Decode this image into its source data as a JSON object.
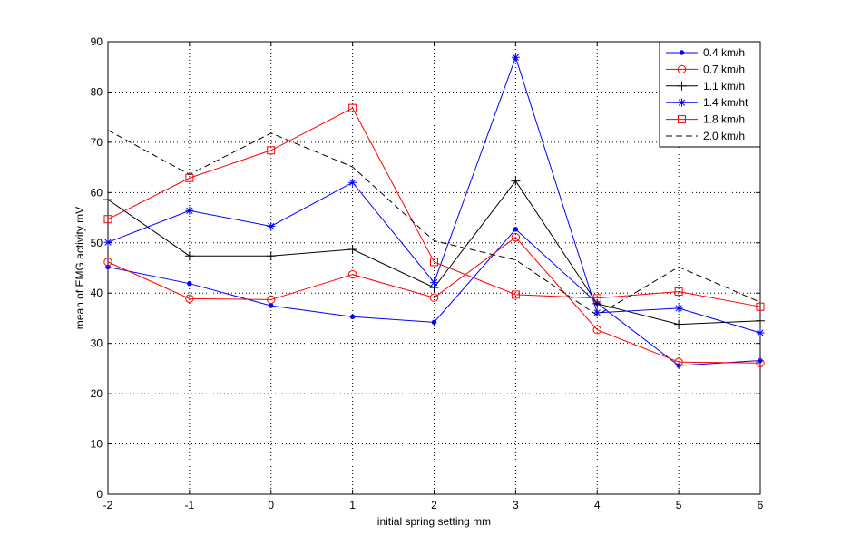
{
  "chart_data": {
    "type": "line",
    "title": "",
    "xlabel": "initial spring setting mm",
    "ylabel": "mean of EMG activity mV",
    "xlim": [
      -2,
      6
    ],
    "ylim": [
      0,
      90
    ],
    "xticks": [
      "-2",
      "-1",
      "0",
      "1",
      "2",
      "3",
      "4",
      "5",
      "6"
    ],
    "yticks": [
      "0",
      "10",
      "20",
      "30",
      "40",
      "50",
      "60",
      "70",
      "80",
      "90"
    ],
    "grid": true,
    "legend_position": "top-right",
    "x": [
      -2,
      -1,
      0,
      1,
      2,
      3,
      4,
      5,
      6
    ],
    "series": [
      {
        "name": "0.4 km/h",
        "color": "#0000ff",
        "marker": "dot",
        "dash": "solid",
        "values": [
          45.2,
          41.9,
          37.5,
          35.3,
          34.2,
          52.7,
          38.0,
          25.6,
          26.6
        ]
      },
      {
        "name": "0.7 km/h",
        "color": "#ff0000",
        "marker": "circle",
        "dash": "solid",
        "values": [
          46.2,
          38.9,
          38.7,
          43.7,
          39.1,
          51.1,
          32.7,
          26.3,
          26.1
        ]
      },
      {
        "name": "1.1 km/h",
        "color": "#000000",
        "marker": "plus",
        "dash": "solid",
        "values": [
          58.6,
          47.4,
          47.4,
          48.7,
          41.1,
          62.3,
          37.9,
          33.8,
          34.5
        ]
      },
      {
        "name": "1.4 km/ht",
        "color": "#0000ff",
        "marker": "star",
        "dash": "solid",
        "values": [
          50.1,
          56.4,
          53.3,
          62.0,
          42.1,
          86.9,
          36.1,
          37.0,
          32.1
        ]
      },
      {
        "name": "1.8 km/h",
        "color": "#ff0000",
        "marker": "square",
        "dash": "solid",
        "values": [
          54.7,
          62.9,
          68.4,
          76.8,
          46.2,
          39.7,
          39.0,
          40.3,
          37.3
        ]
      },
      {
        "name": "2.0 km/h",
        "color": "#000000",
        "marker": "none",
        "dash": "dashed",
        "values": [
          72.4,
          63.6,
          71.8,
          65.1,
          50.4,
          46.6,
          35.6,
          45.2,
          38.2
        ]
      }
    ]
  }
}
